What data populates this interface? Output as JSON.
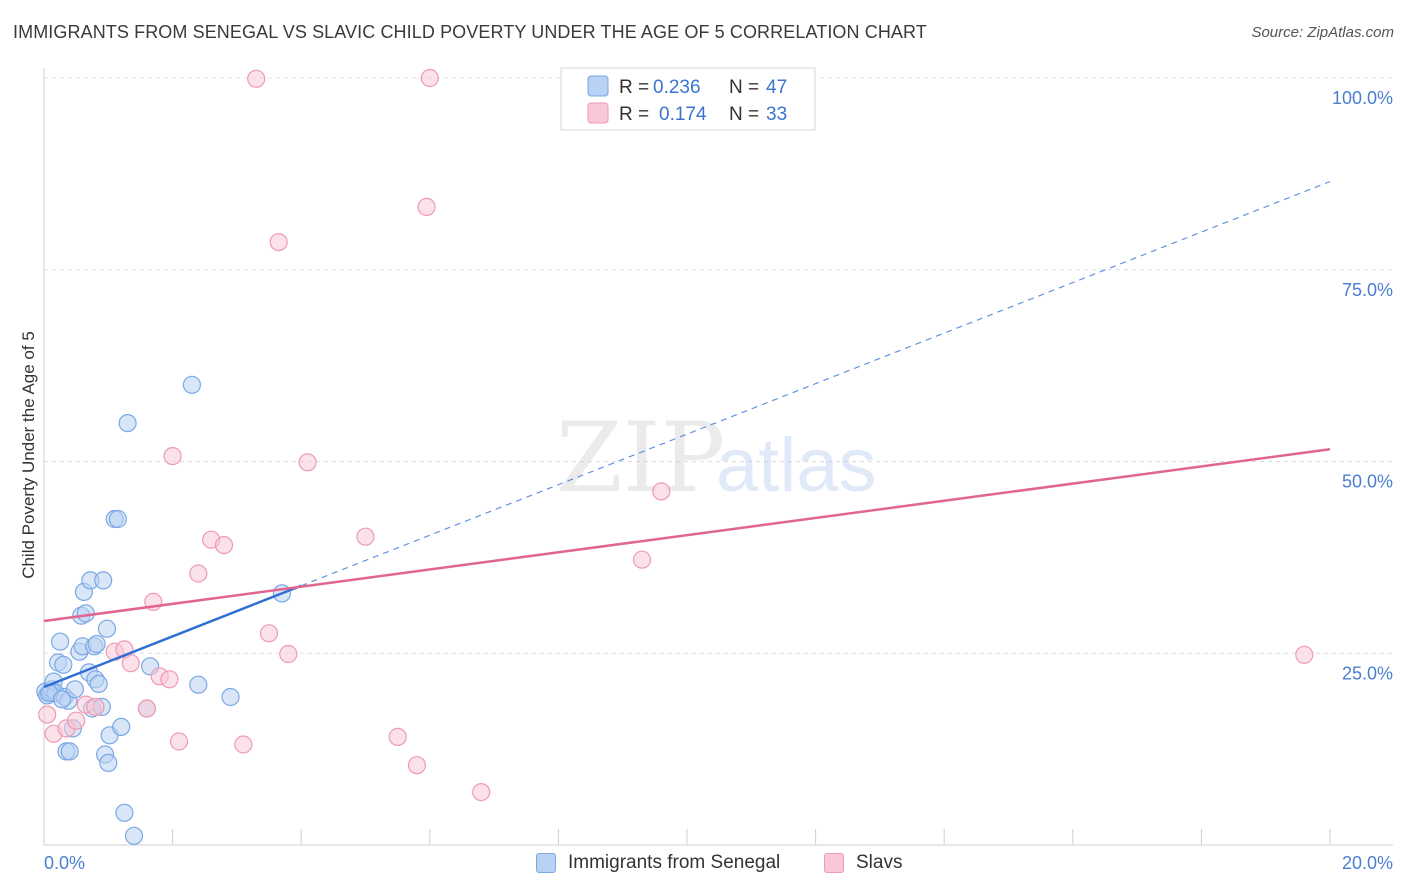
{
  "title": "IMMIGRANTS FROM SENEGAL VS SLAVIC CHILD POVERTY UNDER THE AGE OF 5 CORRELATION CHART",
  "source": "Source: ZipAtlas.com",
  "watermark": {
    "zip": "ZIP",
    "atlas": "atlas"
  },
  "legend": {
    "rows": [
      {
        "r_label": "R =",
        "r_value": "0.236",
        "n_label": "N =",
        "n_value": "47"
      },
      {
        "r_label": "R =",
        "r_value": "0.174",
        "n_label": "N =",
        "n_value": "33"
      }
    ]
  },
  "bottom_legend": {
    "senegal": "Immigrants from Senegal",
    "slavs": "Slavs"
  },
  "colors": {
    "senegal_fill": "#b9d1f2",
    "senegal_stroke": "#7aa8e4",
    "senegal_line": "#2e6fd3",
    "slavs_fill": "#f8c8d6",
    "slavs_stroke": "#ef9ab5",
    "slavs_line": "#e0668f",
    "tick": "#4a7fd0",
    "grid": "#dcdcdc"
  },
  "chart_data": {
    "type": "scatter",
    "title": "IMMIGRANTS FROM SENEGAL VS SLAVIC CHILD POVERTY UNDER THE AGE OF 5 CORRELATION CHART",
    "xlabel": "",
    "ylabel": "Child Poverty Under the Age of 5",
    "xlim": [
      0,
      20
    ],
    "ylim": [
      0,
      100
    ],
    "x_tick_labels": [
      "0.0%",
      "20.0%"
    ],
    "y_ticks": [
      25,
      50,
      75,
      100
    ],
    "y_tick_labels": [
      "25.0%",
      "50.0%",
      "75.0%",
      "100.0%"
    ],
    "grid": true,
    "series": [
      {
        "name": "Immigrants from Senegal",
        "r": 0.236,
        "n": 47,
        "points": [
          [
            0.02,
            20.0
          ],
          [
            0.05,
            19.5
          ],
          [
            0.1,
            20.0
          ],
          [
            0.12,
            20.3
          ],
          [
            0.15,
            21.3
          ],
          [
            0.18,
            19.8
          ],
          [
            0.22,
            23.8
          ],
          [
            0.25,
            26.5
          ],
          [
            0.3,
            23.5
          ],
          [
            0.32,
            19.3
          ],
          [
            0.35,
            12.2
          ],
          [
            0.38,
            18.8
          ],
          [
            0.4,
            12.2
          ],
          [
            0.45,
            15.2
          ],
          [
            0.48,
            20.3
          ],
          [
            0.55,
            25.2
          ],
          [
            0.58,
            29.9
          ],
          [
            0.6,
            25.9
          ],
          [
            0.62,
            33.0
          ],
          [
            0.65,
            30.2
          ],
          [
            0.7,
            22.5
          ],
          [
            0.72,
            34.5
          ],
          [
            0.75,
            17.8
          ],
          [
            0.78,
            25.9
          ],
          [
            0.8,
            21.6
          ],
          [
            0.82,
            26.2
          ],
          [
            0.85,
            21.0
          ],
          [
            0.9,
            18.0
          ],
          [
            0.92,
            34.5
          ],
          [
            0.95,
            11.8
          ],
          [
            0.98,
            28.2
          ],
          [
            1.0,
            10.7
          ],
          [
            1.02,
            14.3
          ],
          [
            1.1,
            42.5
          ],
          [
            1.15,
            42.5
          ],
          [
            1.2,
            15.4
          ],
          [
            1.25,
            4.2
          ],
          [
            1.3,
            55.0
          ],
          [
            1.4,
            1.2
          ],
          [
            1.6,
            17.8
          ],
          [
            1.65,
            23.3
          ],
          [
            2.3,
            60.0
          ],
          [
            2.4,
            20.9
          ],
          [
            2.9,
            19.3
          ],
          [
            3.7,
            32.8
          ],
          [
            0.08,
            19.8
          ],
          [
            0.28,
            19.0
          ]
        ]
      },
      {
        "name": "Slavs",
        "r": 0.174,
        "n": 33,
        "points": [
          [
            0.05,
            17.0
          ],
          [
            0.15,
            14.5
          ],
          [
            0.35,
            15.2
          ],
          [
            0.5,
            16.2
          ],
          [
            0.65,
            18.3
          ],
          [
            0.8,
            18.0
          ],
          [
            1.1,
            25.2
          ],
          [
            1.25,
            25.5
          ],
          [
            1.35,
            23.7
          ],
          [
            1.6,
            17.8
          ],
          [
            1.7,
            31.7
          ],
          [
            1.8,
            22.0
          ],
          [
            1.95,
            21.6
          ],
          [
            2.0,
            50.7
          ],
          [
            2.1,
            13.5
          ],
          [
            2.4,
            35.4
          ],
          [
            2.6,
            39.8
          ],
          [
            2.8,
            39.1
          ],
          [
            3.1,
            13.1
          ],
          [
            3.3,
            99.9
          ],
          [
            3.5,
            27.6
          ],
          [
            3.65,
            78.6
          ],
          [
            3.8,
            24.9
          ],
          [
            4.1,
            49.9
          ],
          [
            5.0,
            40.2
          ],
          [
            5.5,
            14.1
          ],
          [
            5.8,
            10.4
          ],
          [
            5.95,
            83.2
          ],
          [
            6.0,
            100.0
          ],
          [
            6.8,
            6.9
          ],
          [
            9.3,
            37.2
          ],
          [
            9.6,
            46.1
          ],
          [
            19.6,
            24.8
          ]
        ]
      }
    ],
    "trend_lines": [
      {
        "name": "Immigrants from Senegal",
        "solid_from": [
          0,
          20.6
        ],
        "solid_to": [
          4.0,
          33.8
        ],
        "dashed_to": [
          20,
          86.5
        ]
      },
      {
        "name": "Slavs",
        "from": [
          0,
          29.2
        ],
        "to": [
          20,
          51.6
        ]
      }
    ]
  }
}
